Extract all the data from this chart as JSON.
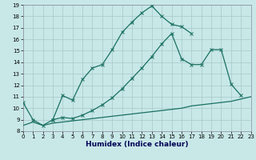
{
  "bg_color": "#c8e8e8",
  "grid_color": "#a8c8c8",
  "line_color": "#1a7060",
  "xlabel": "Humidex (Indice chaleur)",
  "xlim": [
    0,
    23
  ],
  "ylim": [
    8,
    19
  ],
  "xticks": [
    0,
    1,
    2,
    3,
    4,
    5,
    6,
    7,
    8,
    9,
    10,
    11,
    12,
    13,
    14,
    15,
    16,
    17,
    18,
    19,
    20,
    21,
    22,
    23
  ],
  "yticks": [
    8,
    9,
    10,
    11,
    12,
    13,
    14,
    15,
    16,
    17,
    18,
    19
  ],
  "line1_x": [
    0,
    1,
    2,
    3,
    4,
    5,
    6,
    7,
    8,
    9,
    10,
    11,
    12,
    13,
    14,
    15,
    16,
    17
  ],
  "line1_y": [
    10.5,
    9.0,
    8.5,
    9.0,
    11.1,
    10.7,
    12.5,
    13.5,
    13.8,
    15.1,
    16.6,
    17.5,
    18.3,
    18.9,
    18.0,
    17.3,
    17.1,
    16.5
  ],
  "line2_x": [
    3,
    4,
    5,
    6,
    7,
    8,
    9,
    10,
    11,
    12,
    13,
    14,
    15,
    16,
    17,
    18,
    19,
    20,
    21,
    22
  ],
  "line2_y": [
    9.0,
    9.2,
    9.1,
    9.4,
    9.8,
    10.3,
    10.9,
    11.7,
    12.6,
    13.5,
    14.5,
    15.6,
    16.5,
    14.3,
    13.8,
    13.8,
    15.1,
    15.1,
    12.1,
    11.1
  ],
  "line3_x": [
    0,
    1,
    2,
    3,
    4,
    5,
    6,
    7,
    8,
    9,
    10,
    11,
    12,
    13,
    14,
    15,
    16,
    17,
    18,
    19,
    20,
    21,
    22,
    23
  ],
  "line3_y": [
    8.5,
    8.8,
    8.5,
    8.7,
    8.8,
    8.9,
    9.0,
    9.1,
    9.2,
    9.3,
    9.4,
    9.5,
    9.6,
    9.7,
    9.8,
    9.9,
    10.0,
    10.2,
    10.3,
    10.4,
    10.5,
    10.6,
    10.8,
    11.0
  ],
  "lw": 0.9,
  "ms": 2.5,
  "mew": 0.7,
  "tick_fs": 5,
  "xlabel_fs": 6.5
}
